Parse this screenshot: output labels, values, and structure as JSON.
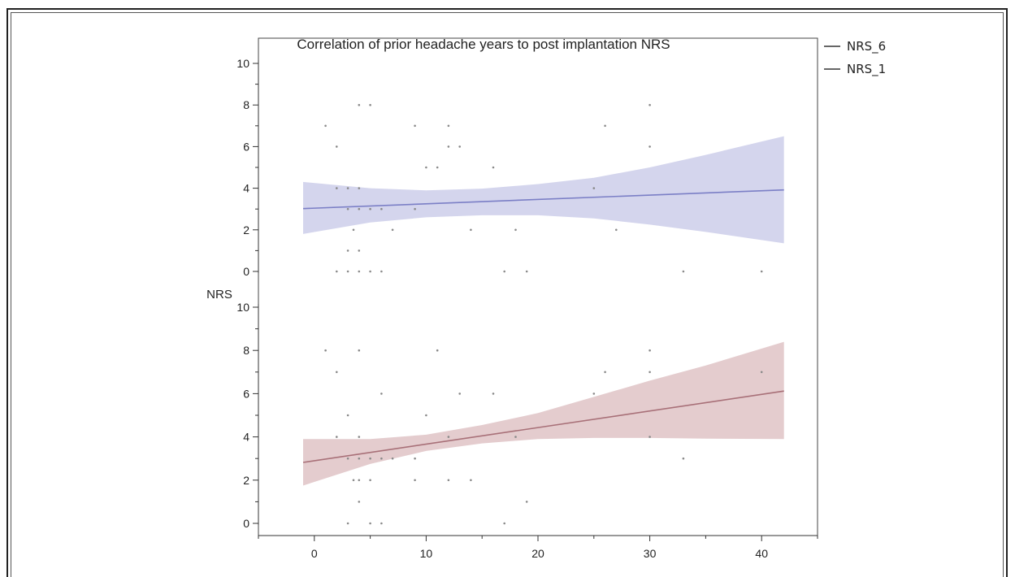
{
  "chart_data": {
    "type": "scatter",
    "title": "Correlation of prior headache years to post implantation NRS",
    "ylabel": "NRS",
    "xlabel": "",
    "x_ticks": [
      0,
      10,
      20,
      30,
      40
    ],
    "y_ticks": [
      0,
      2,
      4,
      6,
      8,
      10
    ],
    "xlim": [
      -5,
      45
    ],
    "ylim": [
      -0.3,
      10.3
    ],
    "legend_position": "top-right outside",
    "panels": [
      {
        "name": "NRS_6",
        "color": "#7b7fc6",
        "band_color": "#ccceea",
        "points": [
          [
            1,
            7
          ],
          [
            2,
            6
          ],
          [
            2,
            4
          ],
          [
            2,
            0
          ],
          [
            3,
            4
          ],
          [
            3,
            3
          ],
          [
            3,
            1
          ],
          [
            3,
            0
          ],
          [
            3.5,
            2
          ],
          [
            4,
            8
          ],
          [
            4,
            4
          ],
          [
            4,
            3
          ],
          [
            4,
            1
          ],
          [
            4,
            0
          ],
          [
            5,
            8
          ],
          [
            5,
            3
          ],
          [
            5,
            0
          ],
          [
            6,
            3
          ],
          [
            6,
            0
          ],
          [
            7,
            2
          ],
          [
            9,
            7
          ],
          [
            9,
            3
          ],
          [
            10,
            5
          ],
          [
            11,
            5
          ],
          [
            12,
            7
          ],
          [
            12,
            6
          ],
          [
            13,
            6
          ],
          [
            14,
            2
          ],
          [
            16,
            5
          ],
          [
            17,
            0
          ],
          [
            18,
            2
          ],
          [
            19,
            0
          ],
          [
            25,
            4
          ],
          [
            26,
            7
          ],
          [
            27,
            2
          ],
          [
            30,
            8
          ],
          [
            30,
            6
          ],
          [
            33,
            0
          ],
          [
            40,
            0
          ]
        ],
        "fit": {
          "x": [
            -1,
            42
          ],
          "y": [
            3.02,
            3.92
          ]
        },
        "ci_band": {
          "x": [
            -1,
            5,
            10,
            15,
            20,
            25,
            30,
            35,
            42
          ],
          "lower": [
            1.8,
            2.35,
            2.6,
            2.7,
            2.7,
            2.55,
            2.25,
            1.9,
            1.35
          ],
          "upper": [
            4.3,
            4.0,
            3.9,
            3.98,
            4.2,
            4.5,
            5.0,
            5.6,
            6.5
          ]
        }
      },
      {
        "name": "NRS_1",
        "color": "#a87078",
        "band_color": "#dfc3c6",
        "points": [
          [
            1,
            8
          ],
          [
            2,
            7
          ],
          [
            2,
            4
          ],
          [
            3,
            5
          ],
          [
            3,
            3
          ],
          [
            3,
            0
          ],
          [
            3.5,
            2
          ],
          [
            4,
            2
          ],
          [
            4,
            8
          ],
          [
            4,
            4
          ],
          [
            4,
            3
          ],
          [
            4,
            1
          ],
          [
            5,
            3
          ],
          [
            5,
            2
          ],
          [
            5,
            0
          ],
          [
            6,
            6
          ],
          [
            6,
            3
          ],
          [
            6,
            0
          ],
          [
            7,
            3
          ],
          [
            9,
            3
          ],
          [
            9,
            2
          ],
          [
            10,
            5
          ],
          [
            11,
            8
          ],
          [
            12,
            4
          ],
          [
            12,
            2
          ],
          [
            13,
            6
          ],
          [
            14,
            2
          ],
          [
            16,
            6
          ],
          [
            17,
            0
          ],
          [
            18,
            4
          ],
          [
            19,
            1
          ],
          [
            25,
            6
          ],
          [
            26,
            7
          ],
          [
            30,
            8
          ],
          [
            30,
            7
          ],
          [
            30,
            4
          ],
          [
            33,
            3
          ],
          [
            40,
            7
          ]
        ],
        "fit": {
          "x": [
            -1,
            42
          ],
          "y": [
            2.82,
            6.12
          ]
        },
        "ci_band": {
          "x": [
            -1,
            5,
            10,
            15,
            20,
            25,
            30,
            35,
            42
          ],
          "lower": [
            1.75,
            2.75,
            3.35,
            3.7,
            3.9,
            3.95,
            3.95,
            3.92,
            3.9
          ],
          "upper": [
            3.9,
            3.9,
            4.1,
            4.55,
            5.1,
            5.85,
            6.6,
            7.3,
            8.4
          ]
        }
      }
    ],
    "legend": [
      {
        "label": "NRS_6"
      },
      {
        "label": "NRS_1"
      }
    ]
  }
}
